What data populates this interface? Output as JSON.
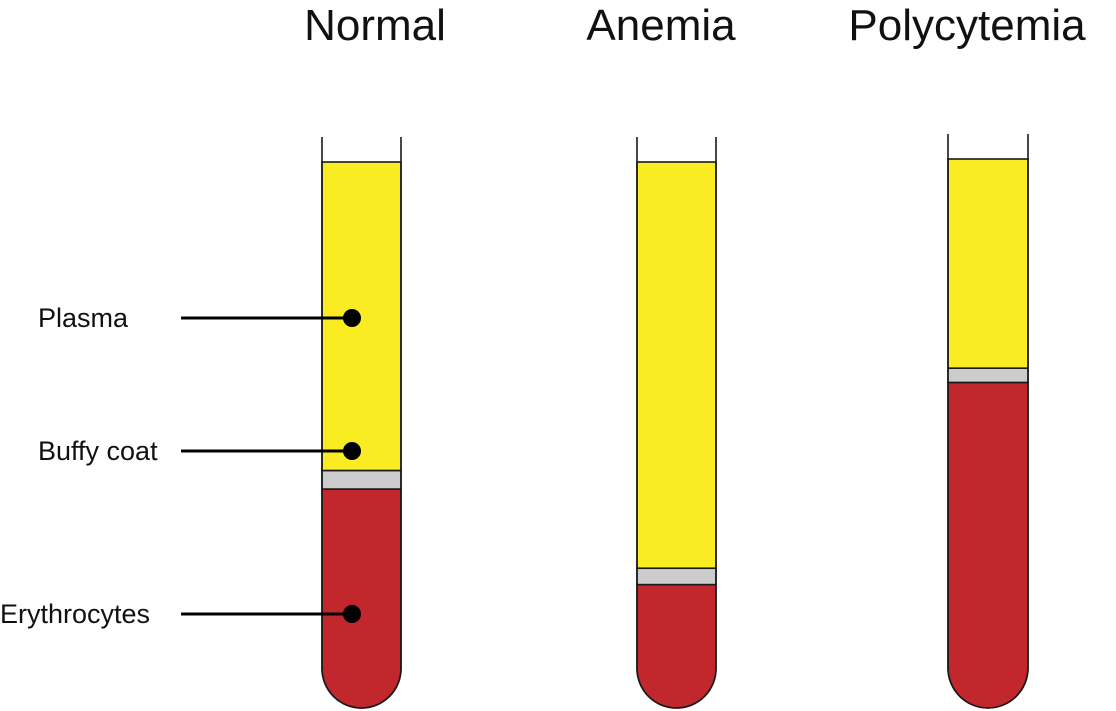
{
  "colors": {
    "plasma": "#F9EC23",
    "buffy_coat": "#CCCCCC",
    "erythrocytes": "#C1272D",
    "outline": "#1A1A1A"
  },
  "labels": {
    "plasma": "Plasma",
    "buffy_coat": "Buffy coat",
    "erythrocytes": "Erythrocytes"
  },
  "tubes": [
    {
      "title": "Normal",
      "plasma_fraction": 0.565,
      "buffy_fraction": 0.034,
      "erythrocyte_fraction": 0.401
    },
    {
      "title": "Anemia",
      "plasma_fraction": 0.744,
      "buffy_fraction": 0.03,
      "erythrocyte_fraction": 0.226
    },
    {
      "title": "Polycytemia",
      "plasma_fraction": 0.381,
      "buffy_fraction": 0.026,
      "erythrocyte_fraction": 0.593
    }
  ]
}
